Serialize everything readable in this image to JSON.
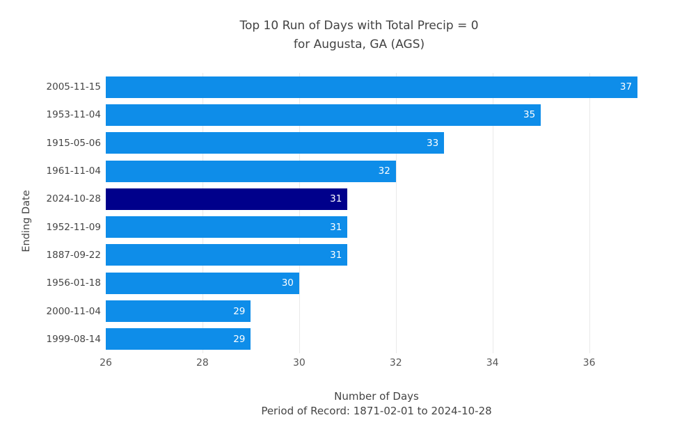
{
  "chart": {
    "title_line1": "Top 10 Run of Days with Total Precip = 0",
    "title_line2": "for Augusta, GA (AGS)"
  },
  "chart_data": {
    "type": "bar",
    "orientation": "horizontal",
    "title": "Top 10 Run of Days with Total Precip = 0 for Augusta, GA (AGS)",
    "title_lines": [
      "Top 10 Run of Days with Total Precip = 0",
      "for Augusta, GA (AGS)"
    ],
    "xlabel": "Number of Days",
    "xlabel_note": "Period of Record: 1871-02-01 to 2024-10-28",
    "ylabel": "Ending Date",
    "categories": [
      "2005-11-15",
      "1953-11-04",
      "1915-05-06",
      "1961-11-04",
      "2024-10-28",
      "1952-11-09",
      "1887-09-22",
      "1956-01-18",
      "2000-11-04",
      "1999-08-14"
    ],
    "values": [
      37,
      35,
      33,
      32,
      31,
      31,
      31,
      30,
      29,
      29
    ],
    "highlight_index": 4,
    "highlight_category": "2024-10-28",
    "xlim": [
      26,
      37.2
    ],
    "xticks": [
      26,
      28,
      30,
      32,
      34,
      36
    ],
    "grid": "vertical",
    "legend": "none",
    "value_label_position": "inside-end",
    "colors": {
      "bar": "#0e8de9",
      "highlight": "#00008b",
      "grid": "#e9e9e9",
      "text": "#444444",
      "value_label": "#ffffff",
      "background": "#ffffff"
    }
  }
}
